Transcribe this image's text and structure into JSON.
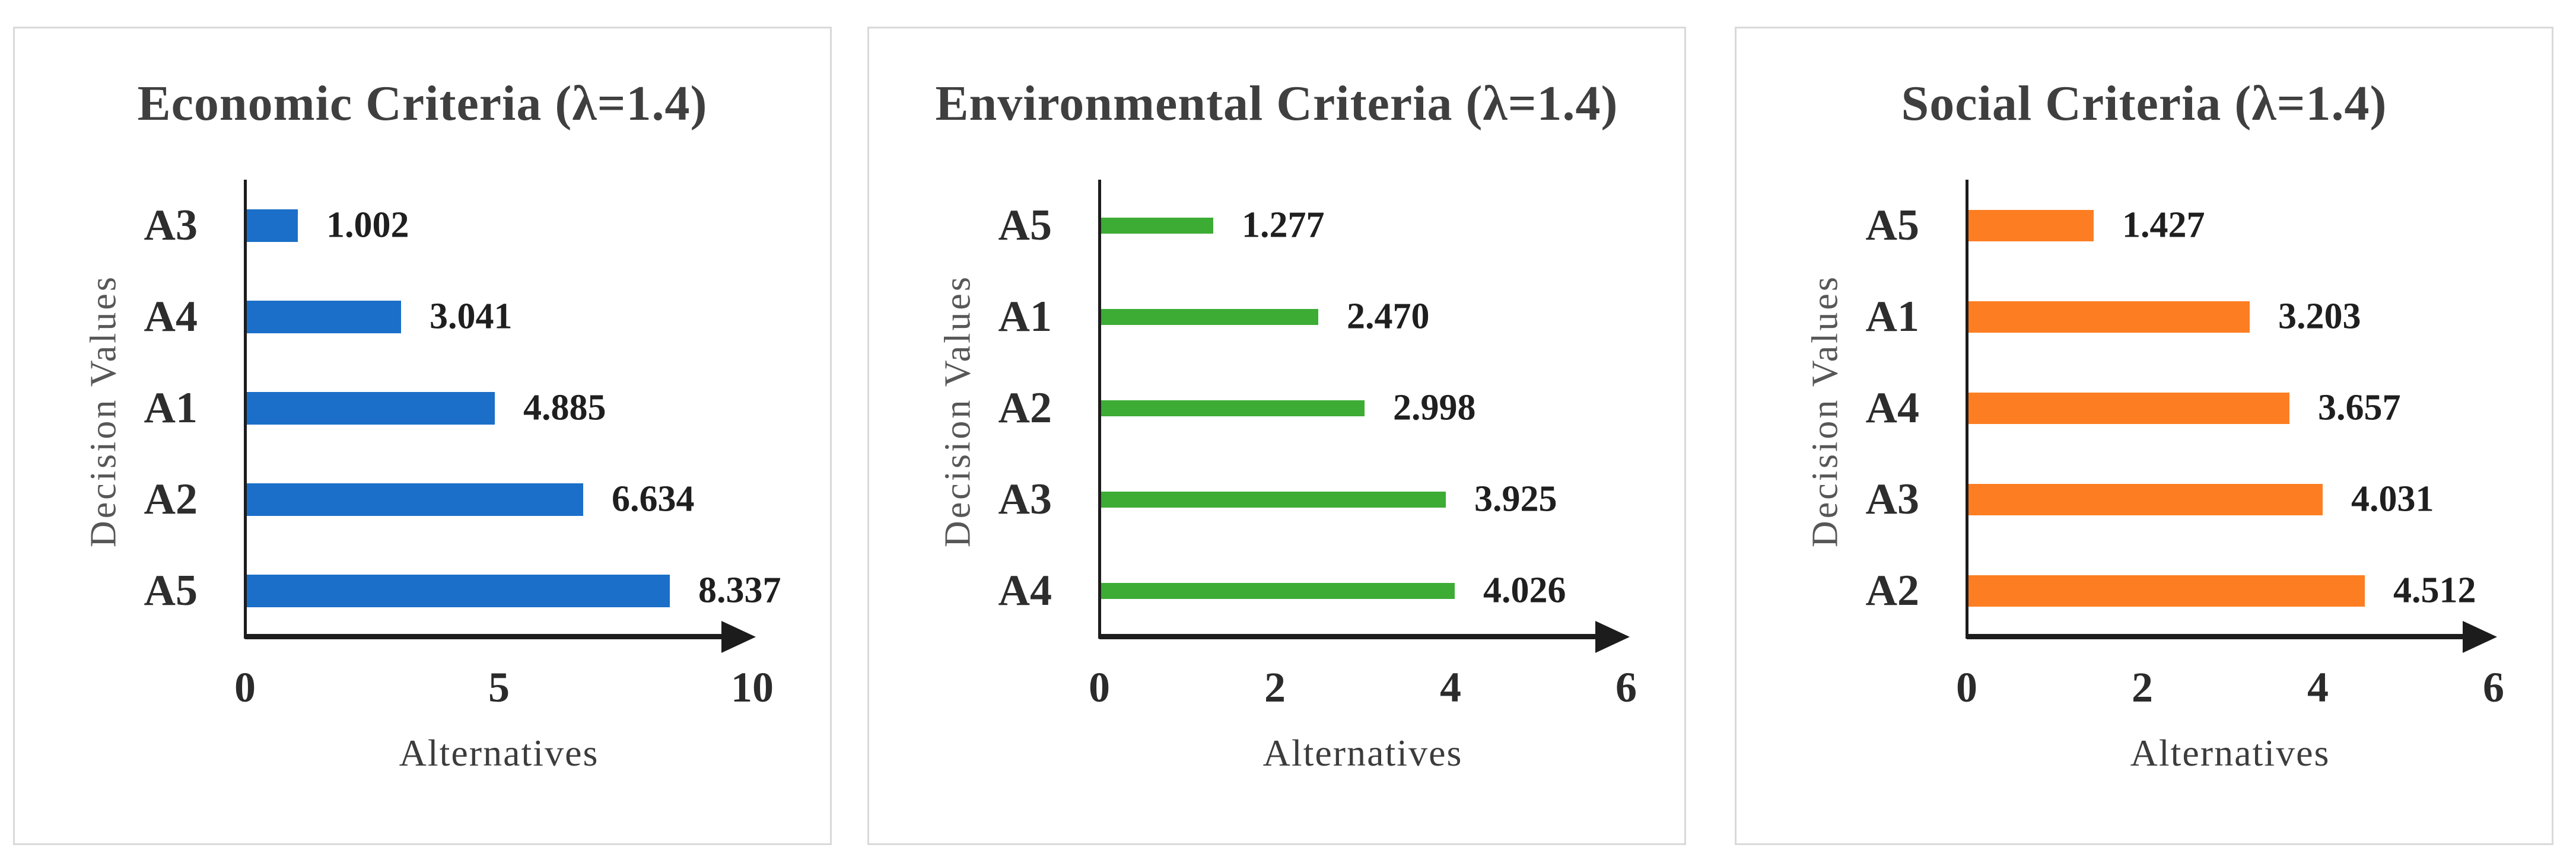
{
  "colors": {
    "background": "#ffffff",
    "panel_border": "#d9d9d9",
    "axis": "#1c1c1c",
    "economic_bar": "#1b6fc8",
    "environmental_bar": "#3dac35",
    "social_bar": "#fd7e22"
  },
  "chart_data": [
    {
      "type": "bar",
      "orientation": "horizontal",
      "title": "Economic Criteria (λ=1.4)",
      "xlabel": "Alternatives",
      "ylabel": "Decision Values",
      "categories": [
        "A3",
        "A4",
        "A1",
        "A2",
        "A5"
      ],
      "values": [
        1.002,
        3.041,
        4.885,
        6.634,
        8.337
      ],
      "value_labels": [
        "1.002",
        "3.041",
        "4.885",
        "6.634",
        "8.337"
      ],
      "x_ticks": [
        0,
        5,
        10
      ],
      "x_tick_labels": [
        "0",
        "5",
        "10"
      ],
      "xlim": [
        0,
        10
      ],
      "grid": false,
      "legend": null,
      "bar_color": "#1b6fc8"
    },
    {
      "type": "bar",
      "orientation": "horizontal",
      "title": "Environmental Criteria (λ=1.4)",
      "xlabel": "Alternatives",
      "ylabel": "Decision Values",
      "categories": [
        "A5",
        "A1",
        "A2",
        "A3",
        "A4"
      ],
      "values": [
        1.277,
        2.47,
        2.998,
        3.925,
        4.026
      ],
      "value_labels": [
        "1.277",
        "2.470",
        "2.998",
        "3.925",
        "4.026"
      ],
      "x_ticks": [
        0,
        2,
        4,
        6
      ],
      "x_tick_labels": [
        "0",
        "2",
        "4",
        "6"
      ],
      "xlim": [
        0,
        6
      ],
      "grid": false,
      "legend": null,
      "bar_color": "#3dac35"
    },
    {
      "type": "bar",
      "orientation": "horizontal",
      "title": "Social Criteria (λ=1.4)",
      "xlabel": "Alternatives",
      "ylabel": "Decision Values",
      "categories": [
        "A5",
        "A1",
        "A4",
        "A3",
        "A2"
      ],
      "values": [
        1.427,
        3.203,
        3.657,
        4.031,
        4.512
      ],
      "value_labels": [
        "1.427",
        "3.203",
        "3.657",
        "4.031",
        "4.512"
      ],
      "x_ticks": [
        0,
        2,
        4,
        6
      ],
      "x_tick_labels": [
        "0",
        "2",
        "4",
        "6"
      ],
      "xlim": [
        0,
        6
      ],
      "grid": false,
      "legend": null,
      "bar_color": "#fd7e22"
    }
  ]
}
